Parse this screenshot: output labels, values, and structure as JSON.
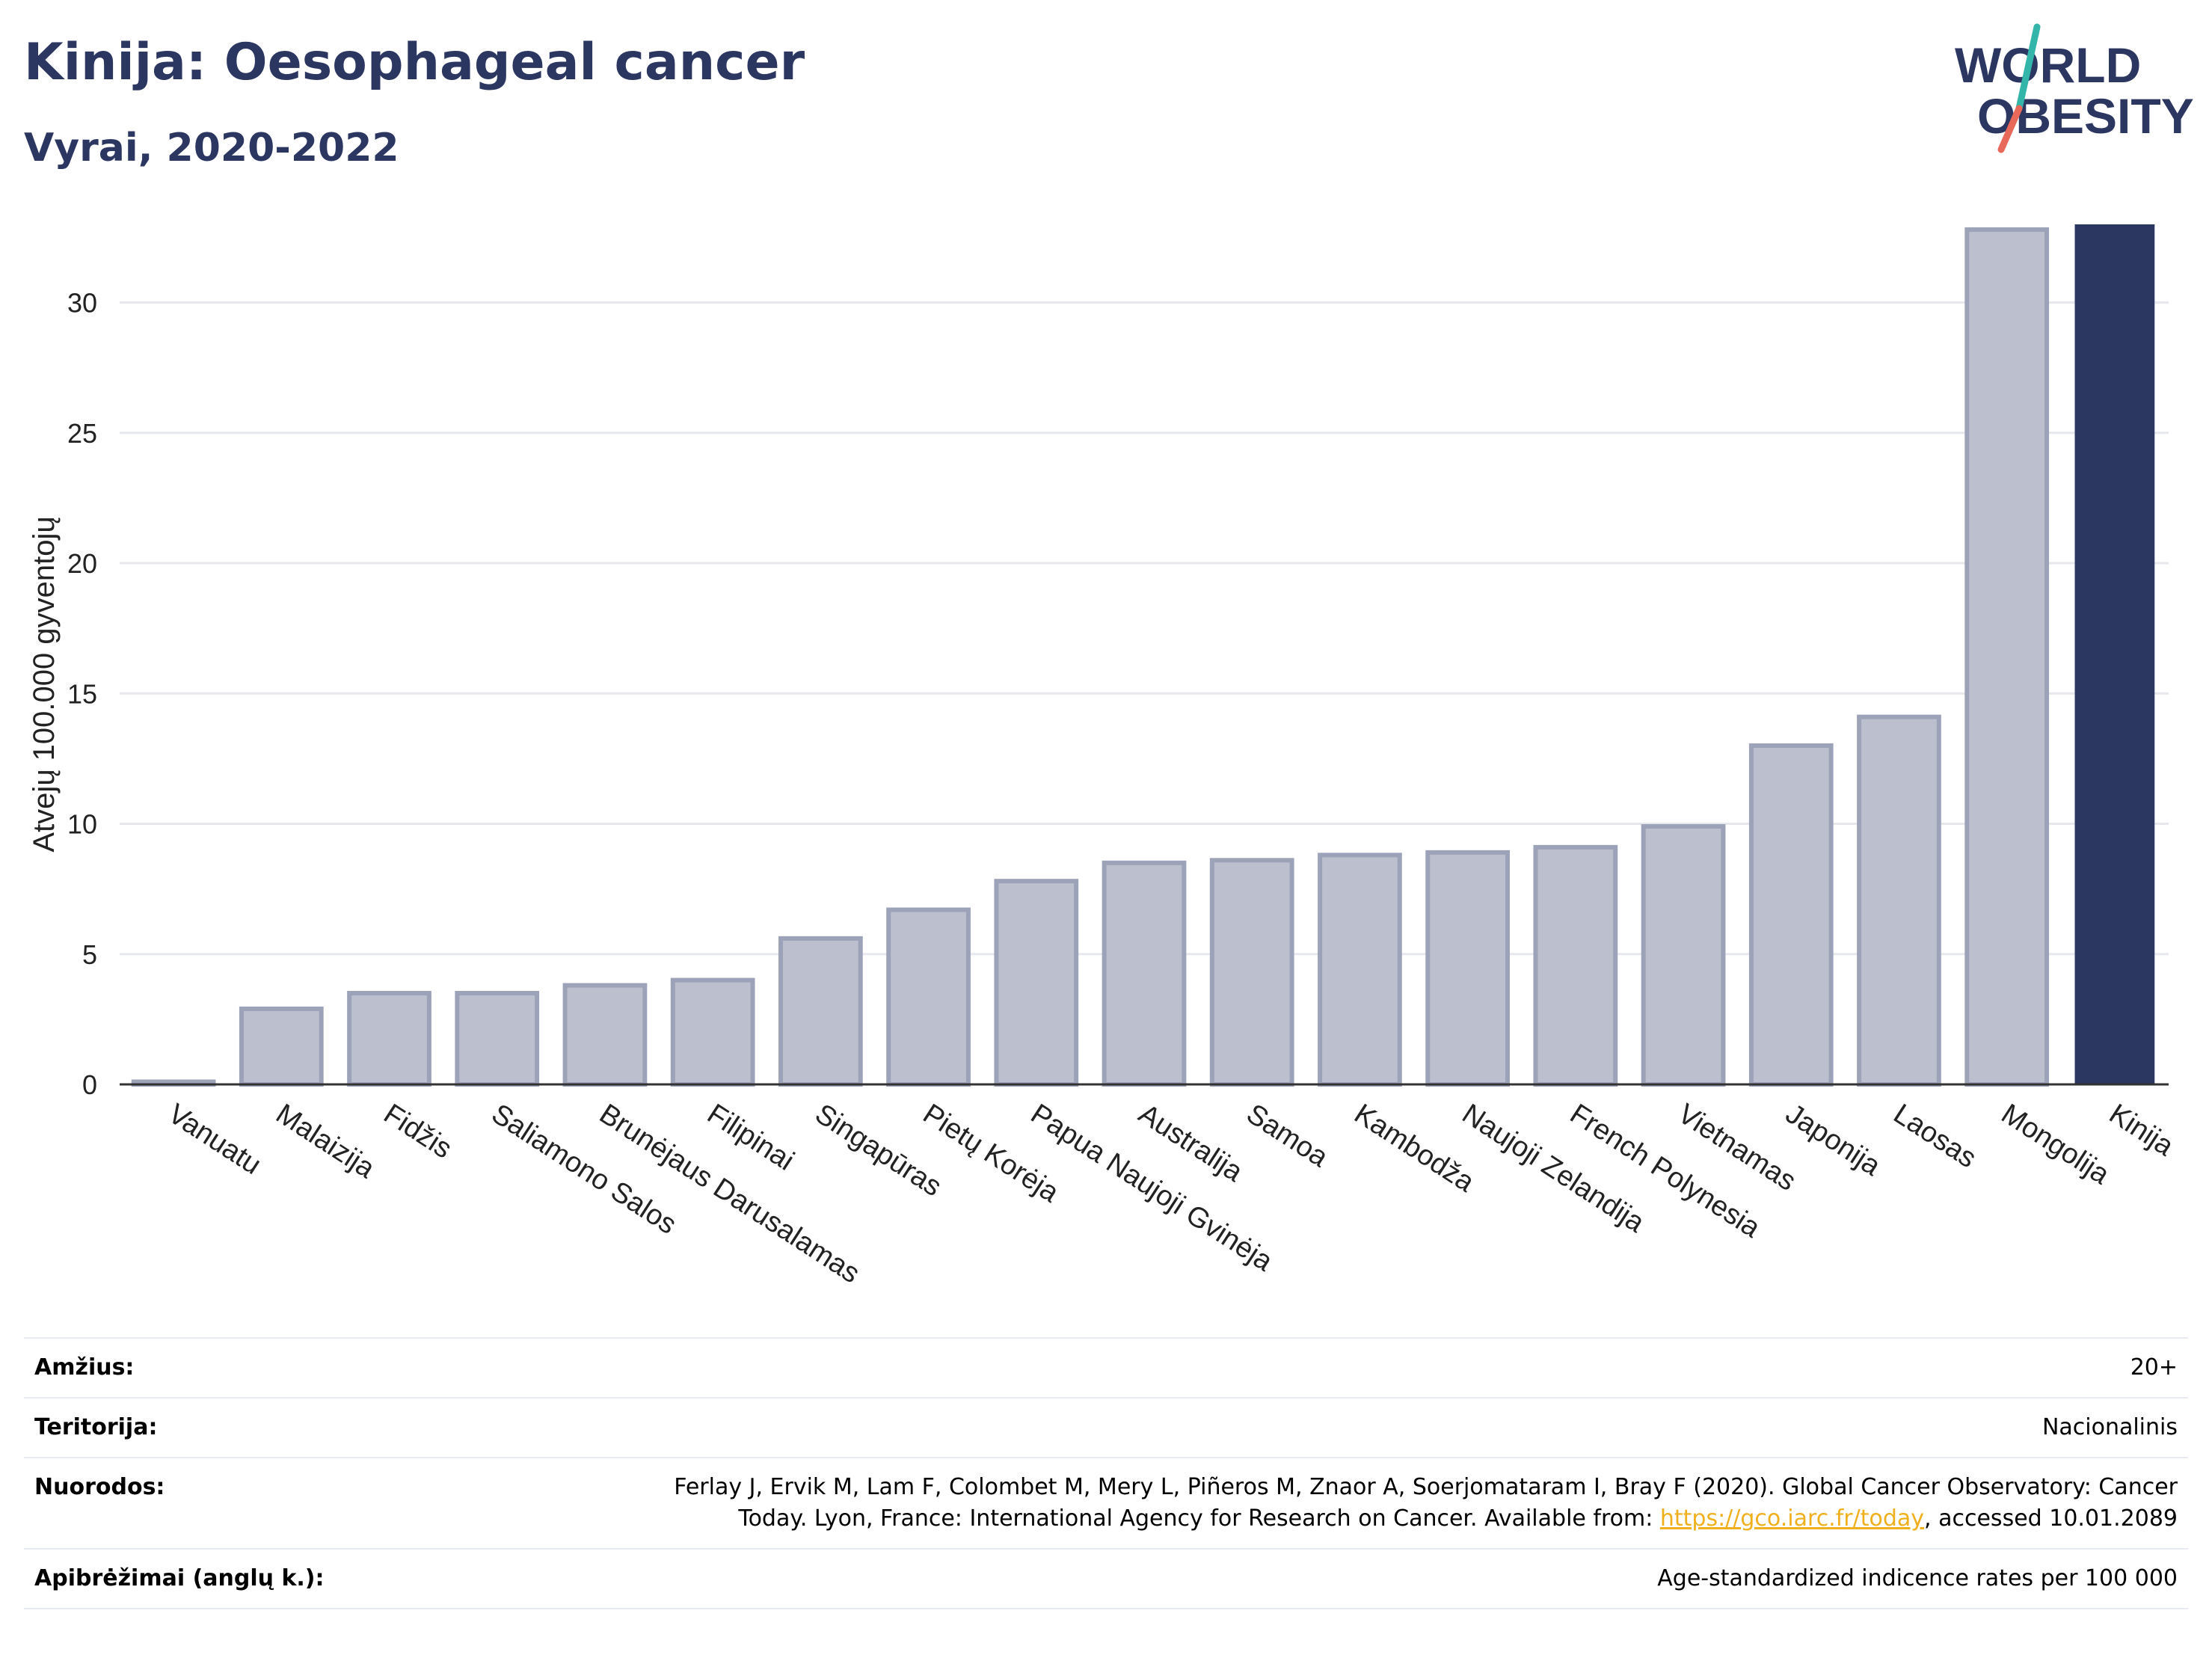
{
  "header": {
    "title": "Kinija: Oesophageal cancer",
    "subtitle": "Vyrai, 2020-2022"
  },
  "logo": {
    "line1": "WORLD",
    "line2": "OBESITY",
    "colors": {
      "text": "#2b3661",
      "slash_top": "#34b5a9",
      "slash_bottom": "#e8685a"
    }
  },
  "chart_data": {
    "type": "bar",
    "ylabel": "Atvejų 100.000 gyventojų",
    "xlabel": "",
    "ylim": [
      0,
      33
    ],
    "yticks": [
      0,
      5,
      10,
      15,
      20,
      25,
      30
    ],
    "grid": true,
    "categories": [
      "Vanuatu",
      "Malaizija",
      "Fidžis",
      "Saliamono Salos",
      "Brunėjaus Darusalamas",
      "Filipinai",
      "Singapūras",
      "Pietų Korėja",
      "Papua Naujoji Gvinėja",
      "Australija",
      "Samoa",
      "Kambodža",
      "Naujoji Zelandija",
      "French Polynesia",
      "Vietnamas",
      "Japonija",
      "Laosas",
      "Mongolija",
      "Kinija"
    ],
    "values": [
      0.1,
      2.9,
      3.5,
      3.5,
      3.8,
      4.0,
      5.6,
      6.7,
      7.8,
      8.5,
      8.6,
      8.8,
      8.9,
      9.1,
      9.9,
      13.0,
      14.1,
      32.8,
      33.0
    ],
    "highlight": "Kinija",
    "colors": {
      "bar": "#bcc0ce",
      "bar_border": "#9ca2b8",
      "highlight": "#2b3661",
      "grid": "#e6e8ee",
      "axis": "#333333"
    }
  },
  "footer": {
    "age_label": "Amžius:",
    "age_value": "20+",
    "territory_label": "Teritorija:",
    "territory_value": "Nacionalinis",
    "refs_label": "Nuorodos:",
    "refs_text_1": "Ferlay J, Ervik M, Lam F, Colombet M, Mery L, Piñeros M, Znaor A, Soerjomataram I, Bray F (2020). Global Cancer Observatory: Cancer",
    "refs_text_2": "Today. Lyon, France: International Agency for Research on Cancer. Available from: ",
    "refs_link": "https://gco.iarc.fr/today",
    "refs_text_3": ", accessed 10.01.2089",
    "defs_label": "Apibrėžimai (anglų k.):",
    "defs_value": "Age-standardized indicence rates per 100 000"
  }
}
